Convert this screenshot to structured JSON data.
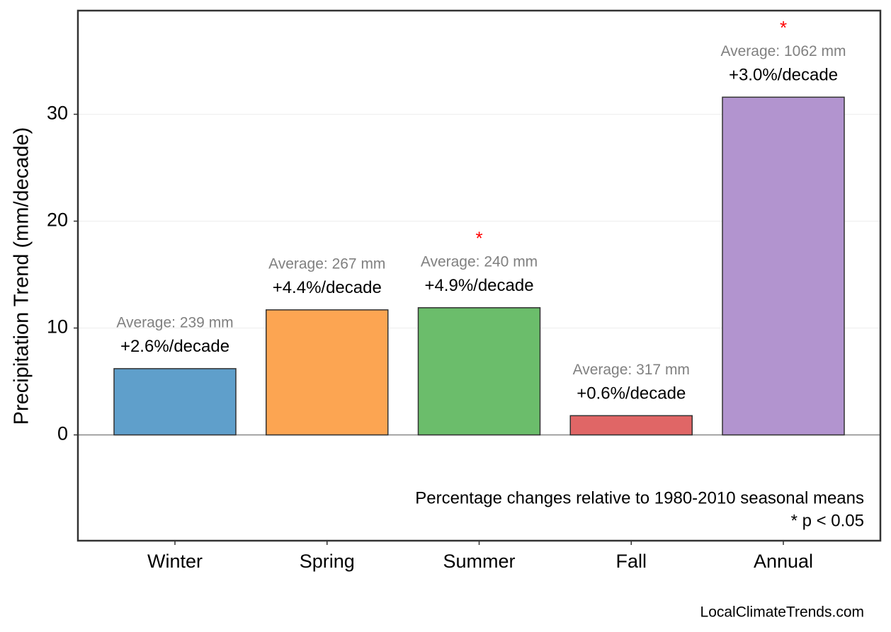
{
  "chart_data": {
    "type": "bar",
    "y_label": "Precipitation Trend (mm/decade)",
    "categories": [
      "Winter",
      "Spring",
      "Summer",
      "Fall",
      "Annual"
    ],
    "values": [
      6.2,
      11.7,
      11.9,
      1.8,
      31.6
    ],
    "colors": [
      "#5f9fcb",
      "#fca552",
      "#6bbd6b",
      "#e06666",
      "#b294cf"
    ],
    "change_labels": [
      "+2.6%/decade",
      "+4.4%/decade",
      "+4.9%/decade",
      "+0.6%/decade",
      "+3.0%/decade"
    ],
    "average_labels": [
      "Average: 239 mm",
      "Average: 267 mm",
      "Average: 240 mm",
      "Average: 317 mm",
      "Average: 1062 mm"
    ],
    "significant": [
      false,
      false,
      true,
      false,
      true
    ],
    "significance_marker": "*",
    "note": "Percentage changes relative to 1980-2010 seasonal means",
    "significance_note": "* p < 0.05",
    "source": "LocalClimateTrends.com",
    "ylim": [
      -9.9,
      39.7
    ],
    "yticks": [
      0,
      10,
      20,
      30
    ],
    "grid": true
  }
}
